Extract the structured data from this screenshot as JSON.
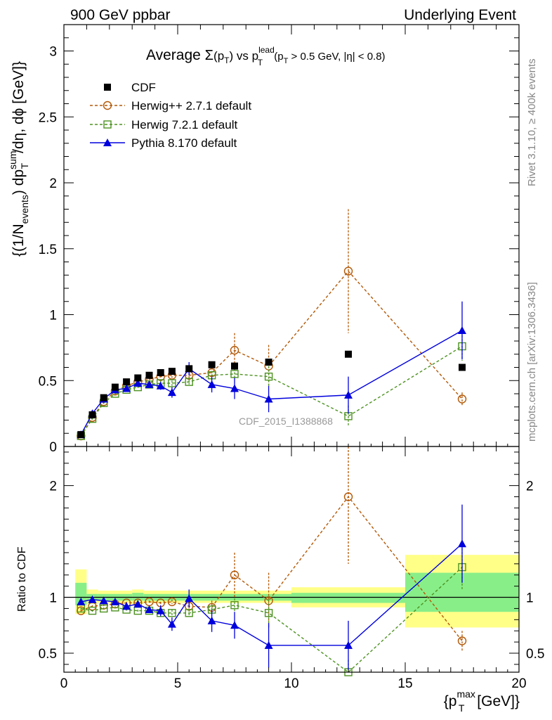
{
  "header": {
    "left": "900 GeV ppbar",
    "right": "Underlying Event"
  },
  "side_text": {
    "rivet": "Rivet 3.1.10, ≥ 400k events",
    "mcplots": "mcplots.cern.ch [arXiv:1306.3436]"
  },
  "watermark": "CDF_2015_I1388868",
  "chart_data": {
    "type": "scatter",
    "title": {
      "prefix": "Average ",
      "sigma": "Σ",
      "paren_open": "(p",
      "sub_t": "T",
      "paren_close": ")",
      "vs": " vs p",
      "sup_lead": "lead",
      "sub_t2": "T",
      "cut_open": " (p",
      "sub_t3": "T",
      "cut_rest": " > 0.5 GeV, |η| < 0.8)"
    },
    "ylabel": {
      "a": "{(1/N",
      "a_sub": "events",
      "b": ") dp",
      "b_sup": "sum",
      "b_sub": "T",
      "c": "/dη, dϕ [GeV]}"
    },
    "ratio_ylabel": "Ratio to CDF",
    "xlabel": {
      "a": "{p",
      "sup": "max",
      "sub": "T",
      "b": " [GeV]}"
    },
    "xlim": [
      0,
      20
    ],
    "ylim": [
      0,
      3.2
    ],
    "ratio_ylim": [
      0.33,
      2.35
    ],
    "x_ticks": [
      "0",
      "5",
      "10",
      "15",
      "20"
    ],
    "y_ticks": [
      "0",
      "0.5",
      "1",
      "1.5",
      "2",
      "2.5",
      "3"
    ],
    "ratio_ticks": [
      "0.5",
      "1",
      "2"
    ],
    "legend": {
      "placement": "top-left",
      "entries": [
        "CDF",
        "Herwig++ 2.7.1 default",
        "Herwig 7.2.1 default",
        "Pythia 8.170 default"
      ]
    },
    "colors": {
      "cdf": "#000000",
      "herwigpp": "#b35806",
      "herwig7": "#4d9221",
      "pythia": "#0000dd",
      "band_yellow": "#ffff88",
      "band_green": "#88ee88"
    },
    "series": [
      {
        "name": "CDF",
        "x": [
          0.75,
          1.25,
          1.75,
          2.25,
          2.75,
          3.25,
          3.75,
          4.25,
          4.75,
          5.5,
          6.5,
          7.5,
          9.0,
          12.5,
          17.5
        ],
        "y": [
          0.09,
          0.24,
          0.37,
          0.45,
          0.49,
          0.52,
          0.54,
          0.56,
          0.57,
          0.59,
          0.62,
          0.61,
          0.64,
          0.7,
          0.6
        ],
        "err": [
          0.01,
          0.01,
          0.01,
          0.01,
          0.01,
          0.01,
          0.01,
          0.01,
          0.01,
          0.01,
          0.01,
          0.02,
          0.02,
          0.02,
          0.02
        ]
      },
      {
        "name": "Herwig++ 2.7.1 default",
        "x": [
          0.75,
          1.25,
          1.75,
          2.25,
          2.75,
          3.25,
          3.75,
          4.25,
          4.75,
          5.5,
          6.5,
          7.5,
          9.0,
          12.5,
          17.5
        ],
        "y": [
          0.08,
          0.22,
          0.34,
          0.42,
          0.46,
          0.49,
          0.51,
          0.53,
          0.54,
          0.54,
          0.56,
          0.73,
          0.61,
          1.33,
          0.36
        ],
        "err": [
          0.01,
          0.01,
          0.01,
          0.01,
          0.01,
          0.01,
          0.01,
          0.01,
          0.02,
          0.02,
          0.04,
          0.13,
          0.16,
          0.47,
          0.05
        ]
      },
      {
        "name": "Herwig 7.2.1 default",
        "x": [
          0.75,
          1.25,
          1.75,
          2.25,
          2.75,
          3.25,
          3.75,
          4.25,
          4.75,
          5.5,
          6.5,
          7.5,
          9.0,
          12.5,
          17.5
        ],
        "y": [
          0.08,
          0.21,
          0.33,
          0.4,
          0.43,
          0.45,
          0.47,
          0.48,
          0.48,
          0.49,
          0.54,
          0.55,
          0.53,
          0.23,
          0.76
        ],
        "err": [
          0.01,
          0.01,
          0.01,
          0.01,
          0.01,
          0.01,
          0.01,
          0.02,
          0.02,
          0.02,
          0.03,
          0.04,
          0.08,
          0.08,
          0.11
        ]
      },
      {
        "name": "Pythia 8.170 default",
        "x": [
          0.75,
          1.25,
          1.75,
          2.25,
          2.75,
          3.25,
          3.75,
          4.25,
          4.75,
          5.5,
          6.5,
          7.5,
          9.0,
          12.5,
          17.5
        ],
        "y": [
          0.09,
          0.25,
          0.36,
          0.43,
          0.44,
          0.48,
          0.47,
          0.46,
          0.41,
          0.59,
          0.47,
          0.44,
          0.36,
          0.39,
          0.88
        ],
        "err": [
          0.01,
          0.01,
          0.01,
          0.01,
          0.01,
          0.02,
          0.02,
          0.03,
          0.04,
          0.05,
          0.06,
          0.08,
          0.1,
          0.14,
          0.22
        ]
      }
    ],
    "ratio_series": [
      {
        "name": "Herwig++ 2.7.1 default",
        "y": [
          0.88,
          0.92,
          0.93,
          0.94,
          0.95,
          0.95,
          0.96,
          0.95,
          0.96,
          0.92,
          0.91,
          1.2,
          0.97,
          1.9,
          0.61
        ],
        "err": [
          0.01,
          0.01,
          0.01,
          0.01,
          0.01,
          0.01,
          0.01,
          0.01,
          0.02,
          0.03,
          0.06,
          0.2,
          0.25,
          0.6,
          0.09
        ]
      },
      {
        "name": "Herwig 7.2.1 default",
        "y": [
          0.9,
          0.88,
          0.9,
          0.91,
          0.89,
          0.88,
          0.88,
          0.86,
          0.86,
          0.86,
          0.89,
          0.93,
          0.86,
          0.33,
          1.27
        ],
        "err": [
          0.01,
          0.01,
          0.01,
          0.01,
          0.01,
          0.01,
          0.01,
          0.02,
          0.03,
          0.03,
          0.05,
          0.06,
          0.12,
          0.11,
          0.2
        ]
      },
      {
        "name": "Pythia 8.170 default",
        "y": [
          0.96,
          0.98,
          0.97,
          0.96,
          0.92,
          0.94,
          0.89,
          0.88,
          0.76,
          0.99,
          0.79,
          0.75,
          0.57,
          0.57,
          1.48
        ],
        "err": [
          0.01,
          0.01,
          0.01,
          0.01,
          0.02,
          0.03,
          0.03,
          0.05,
          0.06,
          0.08,
          0.1,
          0.12,
          0.2,
          0.22,
          0.35
        ]
      }
    ],
    "ratio_bands": [
      {
        "x0": 0.5,
        "x1": 1.0,
        "y_lo": 0.85,
        "y_hi": 1.25,
        "g_lo": 0.93,
        "g_hi": 1.13
      },
      {
        "x0": 1.0,
        "x1": 1.5,
        "y_lo": 0.94,
        "y_hi": 1.07,
        "g_lo": 0.97,
        "g_hi": 1.03
      },
      {
        "x0": 1.5,
        "x1": 3.0,
        "y_lo": 0.95,
        "y_hi": 1.06,
        "g_lo": 0.97,
        "g_hi": 1.03
      },
      {
        "x0": 3.0,
        "x1": 3.5,
        "y_lo": 0.94,
        "y_hi": 1.07,
        "g_lo": 0.97,
        "g_hi": 1.04
      },
      {
        "x0": 3.5,
        "x1": 10.0,
        "y_lo": 0.95,
        "y_hi": 1.06,
        "g_lo": 0.97,
        "g_hi": 1.03
      },
      {
        "x0": 10.0,
        "x1": 15.0,
        "y_lo": 0.91,
        "y_hi": 1.09,
        "g_lo": 0.95,
        "g_hi": 1.04
      },
      {
        "x0": 15.0,
        "x1": 20.0,
        "y_lo": 0.73,
        "y_hi": 1.38,
        "g_lo": 0.87,
        "g_hi": 1.22
      }
    ]
  }
}
